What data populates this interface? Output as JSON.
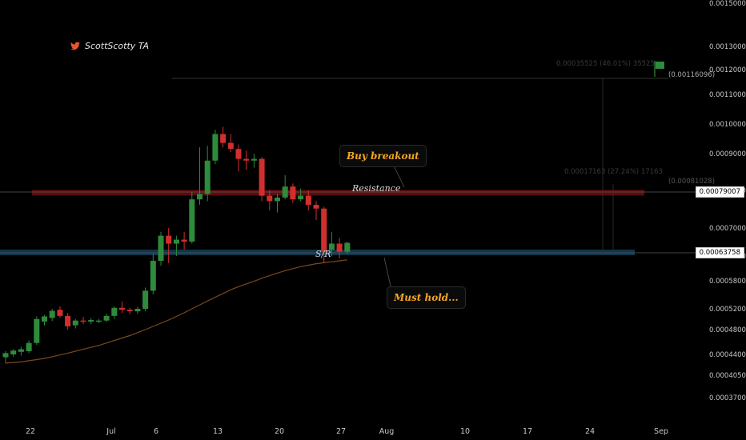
{
  "brand": {
    "name": "ScottScotty TA",
    "icon": "twitter-bird-icon",
    "color": "#e8572a"
  },
  "annotations": {
    "buy_breakout": "Buy breakout",
    "resistance": "Resistance",
    "sr": "S/R",
    "must_hold": "Must hold..."
  },
  "measures": {
    "upper": "0.00035525 (46.01%) 35525",
    "upper_target": "(0.00116096)",
    "lower": "0.00017163 (27.24%) 17163",
    "lower_target": "(0.00081028)"
  },
  "price_tags": {
    "resistance": "0.00079007",
    "support": "0.00063758"
  },
  "colors": {
    "up": "#2e8b3c",
    "down": "#d12f2f",
    "ma": "#7a4a1e",
    "resistance_band": "#5a0d0d",
    "support_band": "#10364a",
    "accent": "#f5a623"
  },
  "chart_data": {
    "type": "candlestick",
    "y_scale": "log",
    "ylim": [
      0.00035,
      0.0015
    ],
    "y_ticks": [
      "0.00150000",
      "0.00130000",
      "0.00120000",
      "0.00110000",
      "0.00100000",
      "0.00090000",
      "0.00080000",
      "0.00070000",
      "0.00063000",
      "0.00058000",
      "0.00052000",
      "0.00048000",
      "0.00044000",
      "0.00040500",
      "0.00037000"
    ],
    "x_ticks": [
      "22",
      "Jul",
      "6",
      "13",
      "20",
      "27",
      "Aug",
      "10",
      "17",
      "24",
      "Sep"
    ],
    "levels": {
      "resistance": 0.00079007,
      "support": 0.00063758,
      "upper_target": 0.00116096,
      "lower_target": 0.00081028
    },
    "candles": [
      {
        "o": 0.000435,
        "h": 0.000445,
        "l": 0.000425,
        "c": 0.000442
      },
      {
        "o": 0.00044,
        "h": 0.000448,
        "l": 0.000436,
        "c": 0.000446
      },
      {
        "o": 0.000444,
        "h": 0.000452,
        "l": 0.000438,
        "c": 0.000448
      },
      {
        "o": 0.000445,
        "h": 0.000462,
        "l": 0.000442,
        "c": 0.000458
      },
      {
        "o": 0.000458,
        "h": 0.000505,
        "l": 0.000455,
        "c": 0.0005
      },
      {
        "o": 0.000495,
        "h": 0.000508,
        "l": 0.000488,
        "c": 0.000505
      },
      {
        "o": 0.000502,
        "h": 0.00052,
        "l": 0.000496,
        "c": 0.000516
      },
      {
        "o": 0.000518,
        "h": 0.000525,
        "l": 0.000502,
        "c": 0.000506
      },
      {
        "o": 0.000506,
        "h": 0.000512,
        "l": 0.00048,
        "c": 0.000486
      },
      {
        "o": 0.000488,
        "h": 0.0005,
        "l": 0.000482,
        "c": 0.000497
      },
      {
        "o": 0.000497,
        "h": 0.000504,
        "l": 0.00049,
        "c": 0.000495
      },
      {
        "o": 0.000495,
        "h": 0.000502,
        "l": 0.00049,
        "c": 0.000498
      },
      {
        "o": 0.000496,
        "h": 0.0005,
        "l": 0.000492,
        "c": 0.000497
      },
      {
        "o": 0.000497,
        "h": 0.00051,
        "l": 0.000494,
        "c": 0.000506
      },
      {
        "o": 0.000506,
        "h": 0.000525,
        "l": 0.0005,
        "c": 0.000522
      },
      {
        "o": 0.000522,
        "h": 0.000535,
        "l": 0.000512,
        "c": 0.000518
      },
      {
        "o": 0.000518,
        "h": 0.000522,
        "l": 0.00051,
        "c": 0.000515
      },
      {
        "o": 0.000515,
        "h": 0.000524,
        "l": 0.00051,
        "c": 0.00052
      },
      {
        "o": 0.00052,
        "h": 0.000565,
        "l": 0.000515,
        "c": 0.000558
      },
      {
        "o": 0.000558,
        "h": 0.000635,
        "l": 0.00055,
        "c": 0.00062
      },
      {
        "o": 0.00062,
        "h": 0.00069,
        "l": 0.00061,
        "c": 0.00068
      },
      {
        "o": 0.00068,
        "h": 0.0007,
        "l": 0.000615,
        "c": 0.00066
      },
      {
        "o": 0.00066,
        "h": 0.00068,
        "l": 0.00063,
        "c": 0.00067
      },
      {
        "o": 0.00067,
        "h": 0.00069,
        "l": 0.000645,
        "c": 0.000665
      },
      {
        "o": 0.000665,
        "h": 0.000795,
        "l": 0.00066,
        "c": 0.000775
      },
      {
        "o": 0.000775,
        "h": 0.00092,
        "l": 0.00076,
        "c": 0.00079
      },
      {
        "o": 0.00079,
        "h": 0.000925,
        "l": 0.00077,
        "c": 0.00088
      },
      {
        "o": 0.00088,
        "h": 0.00098,
        "l": 0.00087,
        "c": 0.000965
      },
      {
        "o": 0.000965,
        "h": 0.00099,
        "l": 0.00092,
        "c": 0.000935
      },
      {
        "o": 0.000935,
        "h": 0.000965,
        "l": 0.000905,
        "c": 0.000915
      },
      {
        "o": 0.000915,
        "h": 0.00093,
        "l": 0.00085,
        "c": 0.000885
      },
      {
        "o": 0.000885,
        "h": 0.00091,
        "l": 0.000855,
        "c": 0.00088
      },
      {
        "o": 0.00088,
        "h": 0.0009,
        "l": 0.00086,
        "c": 0.000885
      },
      {
        "o": 0.000885,
        "h": 0.00089,
        "l": 0.00077,
        "c": 0.000785
      },
      {
        "o": 0.000785,
        "h": 0.0008,
        "l": 0.000745,
        "c": 0.00077
      },
      {
        "o": 0.00077,
        "h": 0.00079,
        "l": 0.00074,
        "c": 0.00078
      },
      {
        "o": 0.00078,
        "h": 0.00084,
        "l": 0.000775,
        "c": 0.00081
      },
      {
        "o": 0.00081,
        "h": 0.000818,
        "l": 0.000765,
        "c": 0.000775
      },
      {
        "o": 0.000775,
        "h": 0.000805,
        "l": 0.00077,
        "c": 0.000785
      },
      {
        "o": 0.000785,
        "h": 0.0008,
        "l": 0.000745,
        "c": 0.00076
      },
      {
        "o": 0.00076,
        "h": 0.00077,
        "l": 0.00072,
        "c": 0.00075
      },
      {
        "o": 0.00075,
        "h": 0.000755,
        "l": 0.000615,
        "c": 0.00064
      },
      {
        "o": 0.000645,
        "h": 0.00069,
        "l": 0.00063,
        "c": 0.00066
      },
      {
        "o": 0.00066,
        "h": 0.000675,
        "l": 0.000625,
        "c": 0.00064
      },
      {
        "o": 0.00064,
        "h": 0.000665,
        "l": 0.000635,
        "c": 0.000662
      }
    ],
    "ma": [
      0.000425,
      0.000426,
      0.000427,
      0.000429,
      0.000431,
      0.000433,
      0.000436,
      0.000439,
      0.000442,
      0.000445,
      0.000448,
      0.000451,
      0.000454,
      0.000458,
      0.000462,
      0.000466,
      0.00047,
      0.000475,
      0.00048,
      0.000486,
      0.000492,
      0.000498,
      0.000505,
      0.000512,
      0.00052,
      0.000528,
      0.000536,
      0.000544,
      0.000552,
      0.00056,
      0.000567,
      0.000573,
      0.000579,
      0.000585,
      0.00059,
      0.000595,
      0.0006,
      0.000604,
      0.000608,
      0.000611,
      0.000614,
      0.000616,
      0.000618,
      0.00062,
      0.000622
    ]
  }
}
